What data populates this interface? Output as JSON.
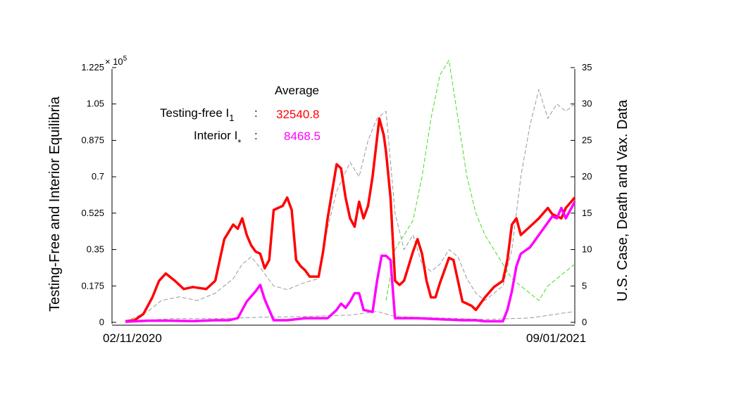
{
  "chart_data": {
    "type": "line",
    "title": "",
    "x_range_labels": [
      "02/11/2020",
      "09/01/2021"
    ],
    "left_axis": {
      "label": "Testing-Free and Interior Equilibria",
      "ticks": [
        "0",
        "0.175",
        "0.35",
        "0.525",
        "0.7",
        "0.875",
        "1.05",
        "1.225"
      ],
      "tick_values": [
        0,
        0.175,
        0.35,
        0.525,
        0.7,
        0.875,
        1.05,
        1.225
      ],
      "multiplier_base": "× 10",
      "multiplier_exp": "5",
      "ylim": [
        0,
        1.225
      ]
    },
    "right_axis": {
      "label": "U.S. Case, Death and Vax. Data",
      "ticks": [
        "0",
        "5",
        "10",
        "15",
        "20",
        "25",
        "30",
        "35"
      ],
      "tick_values": [
        0,
        5,
        10,
        15,
        20,
        25,
        30,
        35
      ],
      "ylim": [
        0,
        35
      ]
    },
    "annotation": {
      "heading": "Average",
      "row1": {
        "label": "Testing-free  I",
        "sub": "1",
        "colon": ":",
        "value": "32540.8",
        "color": "#ff0000"
      },
      "row2": {
        "label": "Interior I",
        "sub": "*",
        "colon": ":",
        "value": "8468.5",
        "color": "#ff00ff"
      }
    },
    "series": [
      {
        "color": "#ff0000",
        "axis": "left",
        "style": "solid",
        "points": [
          [
            0,
            0.005
          ],
          [
            0.02,
            0.01
          ],
          [
            0.04,
            0.04
          ],
          [
            0.06,
            0.12
          ],
          [
            0.075,
            0.2
          ],
          [
            0.09,
            0.235
          ],
          [
            0.11,
            0.2
          ],
          [
            0.13,
            0.16
          ],
          [
            0.15,
            0.17
          ],
          [
            0.18,
            0.16
          ],
          [
            0.2,
            0.2
          ],
          [
            0.22,
            0.4
          ],
          [
            0.24,
            0.47
          ],
          [
            0.25,
            0.45
          ],
          [
            0.26,
            0.5
          ],
          [
            0.27,
            0.42
          ],
          [
            0.28,
            0.37
          ],
          [
            0.29,
            0.34
          ],
          [
            0.3,
            0.33
          ],
          [
            0.31,
            0.26
          ],
          [
            0.32,
            0.3
          ],
          [
            0.33,
            0.54
          ],
          [
            0.35,
            0.56
          ],
          [
            0.36,
            0.6
          ],
          [
            0.37,
            0.54
          ],
          [
            0.38,
            0.3
          ],
          [
            0.39,
            0.27
          ],
          [
            0.4,
            0.25
          ],
          [
            0.41,
            0.22
          ],
          [
            0.43,
            0.22
          ],
          [
            0.44,
            0.34
          ],
          [
            0.45,
            0.5
          ],
          [
            0.47,
            0.76
          ],
          [
            0.48,
            0.74
          ],
          [
            0.49,
            0.6
          ],
          [
            0.5,
            0.5
          ],
          [
            0.51,
            0.46
          ],
          [
            0.52,
            0.58
          ],
          [
            0.53,
            0.5
          ],
          [
            0.54,
            0.56
          ],
          [
            0.55,
            0.7
          ],
          [
            0.565,
            0.98
          ],
          [
            0.575,
            0.9
          ],
          [
            0.58,
            0.82
          ],
          [
            0.59,
            0.6
          ],
          [
            0.6,
            0.2
          ],
          [
            0.61,
            0.18
          ],
          [
            0.62,
            0.2
          ],
          [
            0.64,
            0.34
          ],
          [
            0.65,
            0.4
          ],
          [
            0.66,
            0.33
          ],
          [
            0.67,
            0.2
          ],
          [
            0.68,
            0.12
          ],
          [
            0.69,
            0.12
          ],
          [
            0.7,
            0.19
          ],
          [
            0.71,
            0.25
          ],
          [
            0.72,
            0.31
          ],
          [
            0.73,
            0.3
          ],
          [
            0.74,
            0.2
          ],
          [
            0.75,
            0.1
          ],
          [
            0.77,
            0.08
          ],
          [
            0.78,
            0.06
          ],
          [
            0.8,
            0.12
          ],
          [
            0.82,
            0.17
          ],
          [
            0.84,
            0.2
          ],
          [
            0.85,
            0.3
          ],
          [
            0.86,
            0.47
          ],
          [
            0.87,
            0.5
          ],
          [
            0.88,
            0.42
          ],
          [
            0.9,
            0.46
          ],
          [
            0.92,
            0.5
          ],
          [
            0.94,
            0.55
          ],
          [
            0.95,
            0.52
          ],
          [
            0.97,
            0.5
          ],
          [
            0.98,
            0.55
          ],
          [
            1,
            0.6
          ]
        ]
      },
      {
        "color": "#ff00ff",
        "axis": "left",
        "style": "solid",
        "points": [
          [
            0,
            0.003
          ],
          [
            0.05,
            0.008
          ],
          [
            0.1,
            0.008
          ],
          [
            0.15,
            0.006
          ],
          [
            0.2,
            0.01
          ],
          [
            0.23,
            0.01
          ],
          [
            0.25,
            0.02
          ],
          [
            0.27,
            0.1
          ],
          [
            0.29,
            0.15
          ],
          [
            0.3,
            0.18
          ],
          [
            0.31,
            0.11
          ],
          [
            0.32,
            0.06
          ],
          [
            0.33,
            0.01
          ],
          [
            0.36,
            0.01
          ],
          [
            0.4,
            0.02
          ],
          [
            0.45,
            0.02
          ],
          [
            0.47,
            0.06
          ],
          [
            0.48,
            0.09
          ],
          [
            0.49,
            0.07
          ],
          [
            0.5,
            0.1
          ],
          [
            0.51,
            0.14
          ],
          [
            0.52,
            0.14
          ],
          [
            0.53,
            0.06
          ],
          [
            0.55,
            0.05
          ],
          [
            0.56,
            0.2
          ],
          [
            0.57,
            0.32
          ],
          [
            0.58,
            0.32
          ],
          [
            0.59,
            0.3
          ],
          [
            0.6,
            0.02
          ],
          [
            0.65,
            0.02
          ],
          [
            0.7,
            0.015
          ],
          [
            0.75,
            0.01
          ],
          [
            0.78,
            0.01
          ],
          [
            0.8,
            0.005
          ],
          [
            0.84,
            0.005
          ],
          [
            0.85,
            0.06
          ],
          [
            0.86,
            0.15
          ],
          [
            0.87,
            0.27
          ],
          [
            0.88,
            0.33
          ],
          [
            0.9,
            0.36
          ],
          [
            0.92,
            0.42
          ],
          [
            0.94,
            0.48
          ],
          [
            0.95,
            0.51
          ],
          [
            0.96,
            0.5
          ],
          [
            0.97,
            0.55
          ],
          [
            0.98,
            0.5
          ],
          [
            1,
            0.58
          ]
        ]
      },
      {
        "color": "#999999",
        "axis": "right",
        "style": "dashed",
        "points": [
          [
            0,
            0.1
          ],
          [
            0.05,
            1.5
          ],
          [
            0.08,
            3
          ],
          [
            0.12,
            3.5
          ],
          [
            0.16,
            3
          ],
          [
            0.2,
            4
          ],
          [
            0.24,
            6
          ],
          [
            0.26,
            8
          ],
          [
            0.28,
            9
          ],
          [
            0.3,
            7.5
          ],
          [
            0.33,
            5
          ],
          [
            0.36,
            4.5
          ],
          [
            0.4,
            5.5
          ],
          [
            0.43,
            6
          ],
          [
            0.45,
            13
          ],
          [
            0.47,
            18
          ],
          [
            0.5,
            22
          ],
          [
            0.52,
            20
          ],
          [
            0.54,
            25
          ],
          [
            0.56,
            28
          ],
          [
            0.58,
            29
          ],
          [
            0.6,
            15
          ],
          [
            0.62,
            10
          ],
          [
            0.64,
            12
          ],
          [
            0.66,
            8
          ],
          [
            0.68,
            7
          ],
          [
            0.7,
            8
          ],
          [
            0.72,
            10
          ],
          [
            0.74,
            9
          ],
          [
            0.76,
            6
          ],
          [
            0.78,
            4
          ],
          [
            0.8,
            3
          ],
          [
            0.82,
            4
          ],
          [
            0.84,
            5
          ],
          [
            0.86,
            10
          ],
          [
            0.88,
            20
          ],
          [
            0.9,
            27
          ],
          [
            0.92,
            32
          ],
          [
            0.94,
            28
          ],
          [
            0.96,
            30
          ],
          [
            0.98,
            29
          ],
          [
            1,
            30
          ]
        ]
      },
      {
        "color": "#999999",
        "axis": "right",
        "style": "dashed",
        "points": [
          [
            0,
            0
          ],
          [
            0.05,
            0.3
          ],
          [
            0.1,
            0.5
          ],
          [
            0.2,
            0.5
          ],
          [
            0.3,
            0.7
          ],
          [
            0.4,
            0.8
          ],
          [
            0.5,
            1
          ],
          [
            0.56,
            1.5
          ],
          [
            0.6,
            0.8
          ],
          [
            0.7,
            0.6
          ],
          [
            0.8,
            0.4
          ],
          [
            0.9,
            0.6
          ],
          [
            1,
            1.5
          ]
        ]
      },
      {
        "color": "#44dd22",
        "axis": "right",
        "style": "dashed",
        "points": [
          [
            0.58,
            3
          ],
          [
            0.6,
            10
          ],
          [
            0.62,
            12
          ],
          [
            0.64,
            14
          ],
          [
            0.66,
            20
          ],
          [
            0.68,
            28
          ],
          [
            0.7,
            34
          ],
          [
            0.72,
            36
          ],
          [
            0.74,
            28
          ],
          [
            0.76,
            20
          ],
          [
            0.78,
            15
          ],
          [
            0.8,
            12
          ],
          [
            0.82,
            10
          ],
          [
            0.84,
            8
          ],
          [
            0.86,
            6
          ],
          [
            0.88,
            5
          ],
          [
            0.9,
            4
          ],
          [
            0.92,
            3
          ],
          [
            0.94,
            5
          ],
          [
            0.96,
            6
          ],
          [
            0.98,
            7
          ],
          [
            1,
            8
          ]
        ]
      }
    ]
  }
}
